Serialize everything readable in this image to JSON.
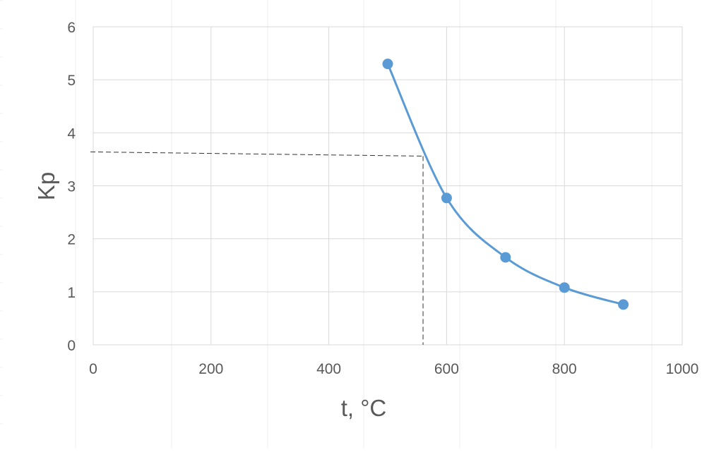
{
  "chart_data": {
    "type": "scatter",
    "title": "",
    "xlabel": "t, °C",
    "ylabel": "Kp",
    "xlim": [
      0,
      1000
    ],
    "ylim": [
      0,
      6
    ],
    "xticks": [
      0,
      200,
      400,
      600,
      800,
      1000
    ],
    "yticks": [
      0,
      1,
      2,
      3,
      4,
      5,
      6
    ],
    "xtick_labels": [
      "0",
      "200",
      "400",
      "600",
      "800",
      "1000"
    ],
    "ytick_labels": [
      "0",
      "1",
      "2",
      "3",
      "4",
      "5",
      "6"
    ],
    "grid": true,
    "legend": "none",
    "smooth_line": true,
    "series": [
      {
        "x": [
          500,
          600,
          700,
          800,
          900
        ],
        "y": [
          5.3,
          2.77,
          1.65,
          1.08,
          0.76
        ],
        "color": "#5b9bd5"
      }
    ],
    "reference_lines": {
      "style": "dashed",
      "color": "#333333",
      "x": 560,
      "y": 3.6
    }
  }
}
